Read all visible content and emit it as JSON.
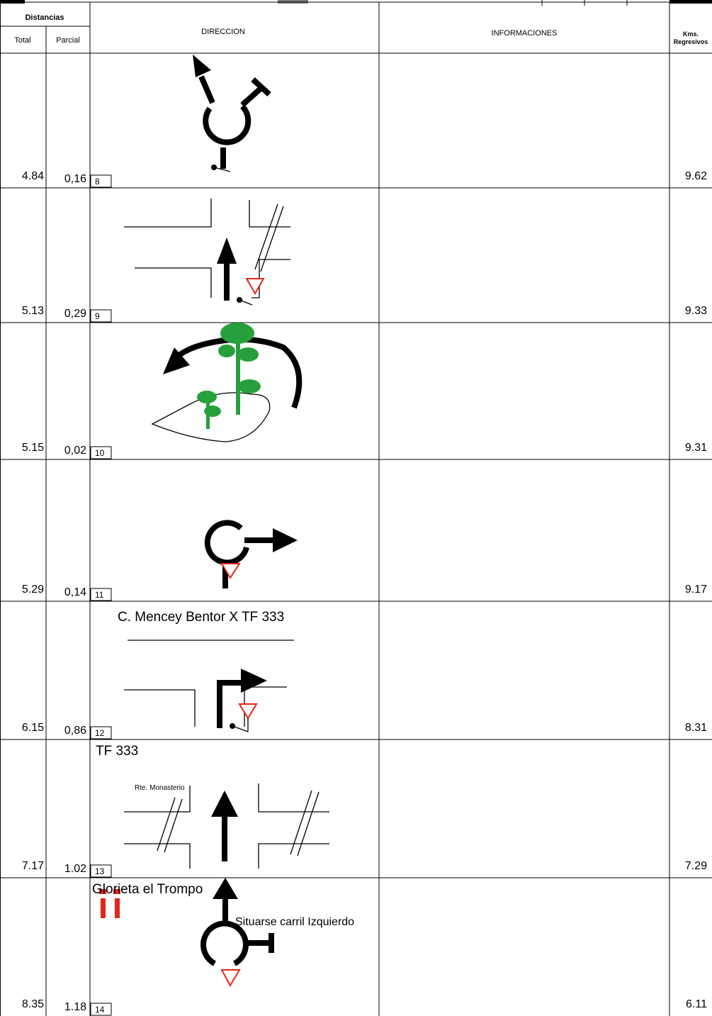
{
  "header": {
    "distances": "Distancias",
    "total": "Total",
    "partial": "Parcial",
    "direction": "DIRECCION",
    "information": "INFORMACIONES",
    "kms": [
      "Kms.",
      "Regresivos"
    ]
  },
  "rows": [
    {
      "total": "4.84",
      "partial": "0,16",
      "number": "8",
      "kms": "9.62"
    },
    {
      "total": "5.13",
      "partial": "0,29",
      "number": "9",
      "kms": "9.33"
    },
    {
      "total": "5.15",
      "partial": "0,02",
      "number": "10",
      "kms": "9.31"
    },
    {
      "total": "5.29",
      "partial": "0,14",
      "number": "11",
      "kms": "9.17"
    },
    {
      "total": "6.15",
      "partial": "0,86",
      "number": "12",
      "kms": "8.31",
      "caption": "C. Mencey Bentor X TF 333"
    },
    {
      "total": "7.17",
      "partial": "1.02",
      "number": "13",
      "kms": "7.29",
      "caption": "TF 333",
      "label": "Rte. Monasterio"
    },
    {
      "total": "8.35",
      "partial": "1.18",
      "number": "14",
      "kms": "6.11",
      "caption": "Glorieta el Trompo",
      "note": "Situarse carril Izquierdo"
    }
  ]
}
